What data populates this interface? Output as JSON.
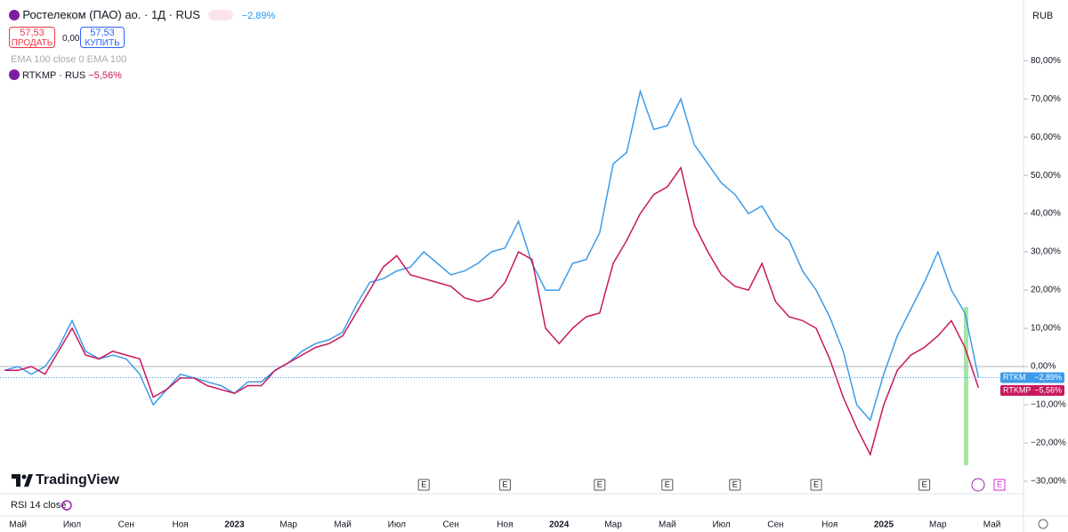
{
  "ui": {
    "symbol_title": "Ростелеком (ПАО) ао. · 1Д · RUS",
    "symbol_change": "−2,89%",
    "sell_price": "57,53",
    "sell_label": "ПРОДАТЬ",
    "spread": "0,00",
    "buy_price": "57,53",
    "buy_label": "КУПИТЬ",
    "indicator": "EMA 100 close 0 EMA 100",
    "compare_title": "RTKMP · RUS",
    "compare_change": "−5,56%",
    "currency": "RUB",
    "brand": "TradingView",
    "rsi": "RSI 14 close",
    "earnings_marker": "E"
  },
  "chart_data": {
    "type": "line",
    "categories": [
      null,
      "Май",
      null,
      null,
      null,
      "Июл",
      null,
      null,
      null,
      "Сен",
      null,
      null,
      null,
      "Ноя",
      null,
      null,
      null,
      "2023",
      null,
      null,
      null,
      "Мар",
      null,
      null,
      null,
      "Май",
      null,
      null,
      null,
      "Июл",
      null,
      null,
      null,
      "Сен",
      null,
      null,
      null,
      "Ноя",
      null,
      null,
      null,
      "2024",
      null,
      null,
      null,
      "Мар",
      null,
      null,
      null,
      "Май",
      null,
      null,
      null,
      "Июл",
      null,
      null,
      null,
      "Сен",
      null,
      null,
      null,
      "Ноя",
      null,
      null,
      null,
      "2025",
      null,
      null,
      null,
      "Мар",
      null,
      null,
      null,
      "Май"
    ],
    "series": [
      {
        "name": "RTKM",
        "color": "#3d9be9",
        "values": [
          -1,
          0,
          -2,
          0,
          5,
          12,
          4,
          2,
          3,
          2,
          -2,
          -10,
          -6,
          -2,
          -3,
          -4,
          -5,
          -7,
          -4,
          -4,
          -1,
          1,
          4,
          6,
          7,
          9,
          16,
          22,
          23,
          25,
          26,
          30,
          27,
          24,
          25,
          27,
          30,
          31,
          38,
          27,
          20,
          20,
          27,
          28,
          35,
          53,
          56,
          72,
          62,
          63,
          70,
          58,
          53,
          48,
          45,
          40,
          42,
          36,
          33,
          25,
          20,
          13,
          4,
          -10,
          -14,
          -2,
          8,
          15,
          22,
          30,
          20,
          14,
          -2.89,
          null
        ],
        "value_labels": [
          null,
          null,
          null,
          null,
          null,
          null,
          null,
          null,
          null,
          null,
          null,
          null,
          null,
          null,
          null,
          null,
          null,
          null,
          null,
          null,
          null,
          null,
          null,
          null,
          null,
          null,
          null,
          null,
          null,
          null,
          null,
          null,
          null,
          null,
          null,
          null,
          null,
          null,
          null,
          null,
          null,
          null,
          null,
          null,
          null,
          null,
          null,
          null,
          null,
          null,
          null,
          null,
          null,
          null,
          null,
          null,
          null,
          null,
          null,
          null,
          null,
          null,
          null,
          null,
          null,
          null,
          null,
          null,
          null,
          null,
          null,
          null,
          "−2,89%",
          null
        ]
      },
      {
        "name": "RTKMP",
        "color": "#c8175d",
        "values": [
          -1,
          -1,
          0,
          -2,
          4,
          10,
          3,
          2,
          4,
          3,
          2,
          -8,
          -6,
          -3,
          -3,
          -5,
          -6,
          -7,
          -5,
          -5,
          -1,
          1,
          3,
          5,
          6,
          8,
          14,
          20,
          26,
          29,
          24,
          23,
          22,
          21,
          18,
          17,
          18,
          22,
          30,
          28,
          10,
          6,
          10,
          13,
          14,
          27,
          33,
          40,
          45,
          47,
          52,
          37,
          30,
          24,
          21,
          20,
          27,
          17,
          13,
          12,
          10,
          2,
          -8,
          -16,
          -23,
          -10,
          -1,
          3,
          5,
          8,
          12,
          5,
          -5.56,
          null
        ],
        "value_labels": [
          null,
          null,
          null,
          null,
          null,
          null,
          null,
          null,
          null,
          null,
          null,
          null,
          null,
          null,
          null,
          null,
          null,
          null,
          null,
          null,
          null,
          null,
          null,
          null,
          null,
          null,
          null,
          null,
          null,
          null,
          null,
          null,
          null,
          null,
          null,
          null,
          null,
          null,
          null,
          null,
          null,
          null,
          null,
          null,
          null,
          null,
          null,
          null,
          null,
          null,
          null,
          null,
          null,
          null,
          null,
          null,
          null,
          null,
          null,
          null,
          null,
          null,
          null,
          null,
          null,
          null,
          null,
          null,
          null,
          null,
          null,
          null,
          "−5,56%",
          null
        ]
      }
    ],
    "ylim": [
      -32.8,
      94.7
    ],
    "yticks": [
      {
        "value": 80,
        "label": "80,00%"
      },
      {
        "value": 70,
        "label": "70,00%"
      },
      {
        "value": 60,
        "label": "60,00%"
      },
      {
        "value": 50,
        "label": "50,00%"
      },
      {
        "value": 40,
        "label": "40,00%"
      },
      {
        "value": 30,
        "label": "30,00%"
      },
      {
        "value": 20,
        "label": "20,00%"
      },
      {
        "value": 10,
        "label": "10,00%"
      },
      {
        "value": 0,
        "label": "0,00%"
      },
      {
        "value": -10,
        "label": "−10,00%"
      },
      {
        "value": -20,
        "label": "−20,00%"
      },
      {
        "value": -30,
        "label": "−30,00%"
      }
    ]
  }
}
